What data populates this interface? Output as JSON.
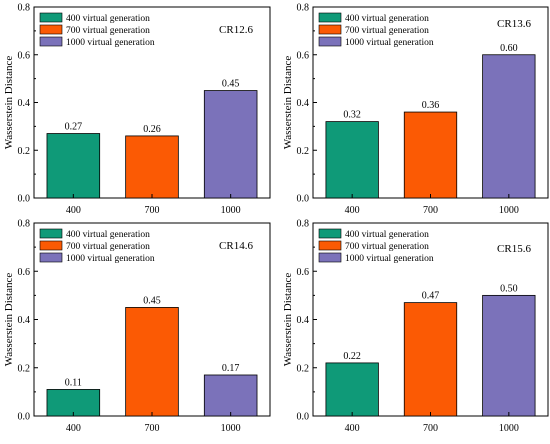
{
  "chart_data": [
    {
      "type": "bar",
      "annotation": "CR12.6",
      "ylabel": "Wasserstein Distance",
      "xlabel": "",
      "categories": [
        "400",
        "700",
        "1000"
      ],
      "values": [
        0.27,
        0.26,
        0.45
      ],
      "value_labels": [
        "0.27",
        "0.26",
        "0.45"
      ],
      "ylim": [
        0,
        0.8
      ],
      "yticks": [
        "0.0",
        "0.2",
        "0.4",
        "0.6",
        "0.8"
      ],
      "legend": [
        "400 virtual generation",
        "700 virtual generation",
        "1000 virtual generation"
      ],
      "legend_position": "top-left",
      "grid": false
    },
    {
      "type": "bar",
      "annotation": "CR13.6",
      "ylabel": "Wasserstein Distance",
      "xlabel": "",
      "categories": [
        "400",
        "700",
        "1000"
      ],
      "values": [
        0.32,
        0.36,
        0.6
      ],
      "value_labels": [
        "0.32",
        "0.36",
        "0.60"
      ],
      "ylim": [
        0,
        0.8
      ],
      "yticks": [
        "0.0",
        "0.2",
        "0.4",
        "0.6",
        "0.8"
      ],
      "legend": [
        "400 virtual generation",
        "700 virtual generation",
        "1000 virtual generation"
      ],
      "legend_position": "top-left",
      "grid": false
    },
    {
      "type": "bar",
      "annotation": "CR14.6",
      "ylabel": "Wasserstein Distance",
      "xlabel": "",
      "categories": [
        "400",
        "700",
        "1000"
      ],
      "values": [
        0.11,
        0.45,
        0.17
      ],
      "value_labels": [
        "0.11",
        "0.45",
        "0.17"
      ],
      "ylim": [
        0,
        0.8
      ],
      "yticks": [
        "0.0",
        "0.2",
        "0.4",
        "0.6",
        "0.8"
      ],
      "legend": [
        "400 virtual generation",
        "700 virtual generation",
        "1000 virtual generation"
      ],
      "legend_position": "top-left",
      "grid": false
    },
    {
      "type": "bar",
      "annotation": "CR15.6",
      "ylabel": "Wasserstein Distance",
      "xlabel": "",
      "categories": [
        "400",
        "700",
        "1000"
      ],
      "values": [
        0.22,
        0.47,
        0.5
      ],
      "value_labels": [
        "0.22",
        "0.47",
        "0.50"
      ],
      "ylim": [
        0,
        0.8
      ],
      "yticks": [
        "0.0",
        "0.2",
        "0.4",
        "0.6",
        "0.8"
      ],
      "legend": [
        "400 virtual generation",
        "700 virtual generation",
        "1000 virtual generation"
      ],
      "legend_position": "top-left",
      "grid": false
    }
  ],
  "colors": {
    "bar_400": "#0f9a78",
    "bar_700": "#fb5a04",
    "bar_1000": "#7b72ba",
    "axis": "#000000",
    "bar_outline": "#000000"
  }
}
